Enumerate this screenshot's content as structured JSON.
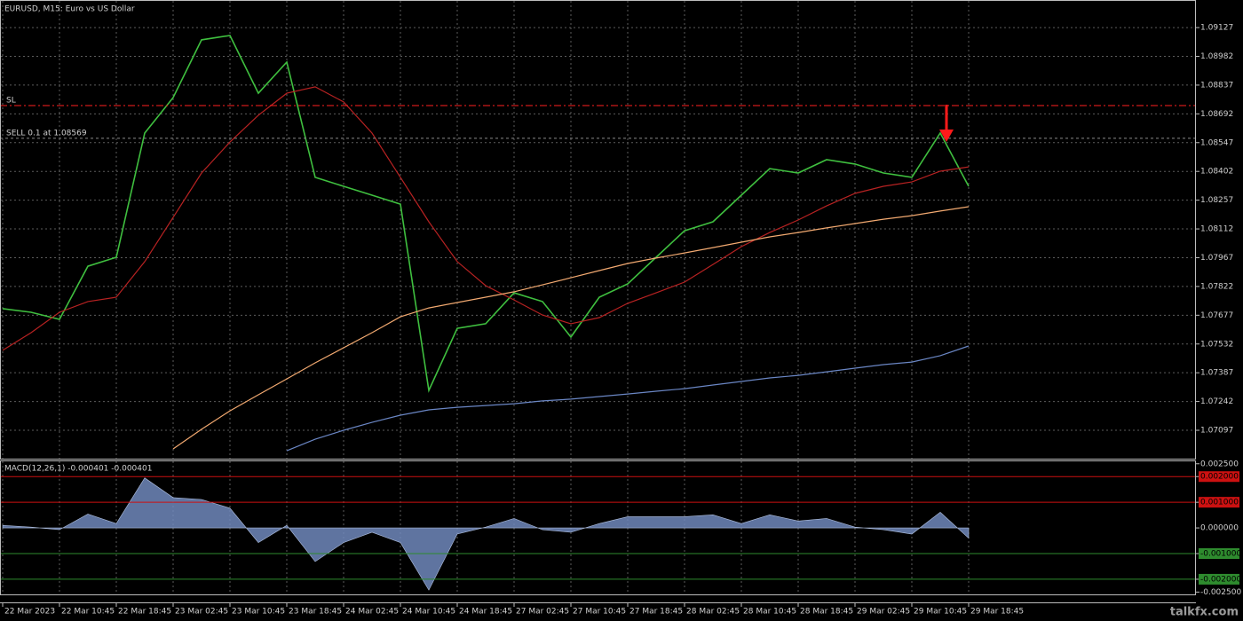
{
  "chart_data": [
    {
      "type": "line",
      "title": "EURUSD, M15:  Euro vs US Dollar",
      "categories": [
        "22 Mar 2023",
        null,
        "22 Mar 10:45",
        null,
        "22 Mar 18:45",
        null,
        "23 Mar 02:45",
        null,
        "23 Mar 10:45",
        null,
        "23 Mar 18:45",
        null,
        "24 Mar 02:45",
        null,
        "24 Mar 10:45",
        null,
        "24 Mar 18:45",
        null,
        "27 Mar 02:45",
        null,
        "27 Mar 10:45",
        null,
        "27 Mar 18:45",
        null,
        "28 Mar 02:45",
        null,
        "28 Mar 10:45",
        null,
        "28 Mar 18:45",
        null,
        "29 Mar 02:45",
        null,
        "29 Mar 10:45",
        null,
        "29 Mar 18:45"
      ],
      "series": [
        {
          "color": "#3fbf3f",
          "values": [
            1.0771,
            1.07692,
            1.07656,
            1.07924,
            1.07969,
            1.08595,
            1.08774,
            1.09065,
            1.09087,
            1.08796,
            1.08953,
            1.08372,
            1.08327,
            1.08282,
            1.08237,
            1.07298,
            1.07611,
            1.07634,
            1.0779,
            1.07746,
            1.07567,
            1.07768,
            1.07835,
            1.07969,
            1.08103,
            1.08148,
            1.08282,
            1.08416,
            1.08394,
            1.08461,
            1.08439,
            1.08394,
            1.08372,
            1.08595,
            1.08327
          ]
        },
        {
          "color": "#b82222",
          "values": [
            1.075,
            1.07589,
            1.07692,
            1.07746,
            1.07768,
            1.07947,
            1.0817,
            1.08394,
            1.0855,
            1.08685,
            1.08796,
            1.08828,
            1.08752,
            1.08595,
            1.08372,
            1.08148,
            1.07947,
            1.07826,
            1.07754,
            1.07678,
            1.07634,
            1.07665,
            1.07737,
            1.0779,
            1.07844,
            1.07933,
            1.08023,
            1.08094,
            1.08157,
            1.08228,
            1.08291,
            1.08327,
            1.08349,
            1.08403,
            1.08425
          ]
        },
        {
          "color": "#f2a970",
          "values": [
            null,
            null,
            null,
            null,
            null,
            null,
            1.07003,
            1.07102,
            1.07195,
            1.07276,
            1.07356,
            1.07437,
            1.07513,
            1.07589,
            1.07669,
            1.07714,
            1.07741,
            1.07768,
            1.07795,
            1.0783,
            1.07866,
            1.07902,
            1.07938,
            1.07965,
            1.07991,
            1.08018,
            1.08045,
            1.08072,
            1.08094,
            1.08117,
            1.08139,
            1.08161,
            1.08179,
            1.08202,
            1.08224
          ]
        },
        {
          "color": "#6a86c4",
          "values": [
            null,
            null,
            null,
            null,
            null,
            null,
            null,
            null,
            null,
            null,
            1.06994,
            1.07052,
            1.07097,
            1.07137,
            1.07173,
            1.072,
            1.07213,
            1.07222,
            1.07231,
            1.07245,
            1.07254,
            1.07267,
            1.0728,
            1.07294,
            1.07307,
            1.07325,
            1.07343,
            1.07361,
            1.07374,
            1.07392,
            1.0741,
            1.07428,
            1.07441,
            1.07473,
            1.07522
          ]
        }
      ],
      "ylim": [
        1.06954,
        1.09266
      ],
      "yticks": [
        1.09127,
        1.08982,
        1.08837,
        1.08692,
        1.08547,
        1.08402,
        1.08257,
        1.08112,
        1.07967,
        1.07822,
        1.07677,
        1.07532,
        1.07387,
        1.07242,
        1.07097
      ],
      "grid": true,
      "hlines": [
        {
          "label": "SL",
          "value": 1.08734,
          "color": "#ff2020",
          "style": "dashdot"
        },
        {
          "label": "SELL 0.1 at 1.08569",
          "value": 1.08569,
          "color": "#8a8a8a",
          "style": "dash"
        }
      ],
      "watermark": "talkfx.com"
    },
    {
      "type": "histogram",
      "title": "MACD(12,26,1) -0.000401 -0.000401",
      "color": "#7088bc",
      "values": [
        0.0001,
        3e-05,
        -7e-05,
        0.00054,
        0.00017,
        0.00195,
        0.00118,
        0.00111,
        0.00077,
        -0.00057,
        0.0001,
        -0.00131,
        -0.00057,
        -0.00017,
        -0.00057,
        -0.00242,
        -0.00024,
        3e-05,
        0.00037,
        -7e-05,
        -0.00017,
        0.00017,
        0.00044,
        0.00044,
        0.00044,
        0.00051,
        0.00017,
        0.00051,
        0.00027,
        0.00037,
        3e-05,
        -7e-05,
        -0.00024,
        0.00061,
        -0.0004
      ],
      "ylim": [
        -0.00259,
        0.00263
      ],
      "yticks": [
        {
          "value": 0.0025,
          "label": "0.002500"
        },
        {
          "value": 0.002,
          "label": "0.002000"
        },
        {
          "value": 0.001,
          "label": "0.001000"
        },
        {
          "value": 0,
          "label": "0.000000"
        },
        {
          "value": -0.001,
          "label": "-0.001000"
        },
        {
          "value": -0.002,
          "label": "-0.002000"
        },
        {
          "value": -0.0025,
          "label": "-0.002500"
        }
      ],
      "levels": [
        {
          "value": 0.002,
          "color": "#cc1111"
        },
        {
          "value": 0.001,
          "color": "#cc1111"
        },
        {
          "value": -0.001,
          "color": "#2e8b2e"
        },
        {
          "value": -0.002,
          "color": "#2e8b2e"
        }
      ],
      "grid": true
    }
  ]
}
